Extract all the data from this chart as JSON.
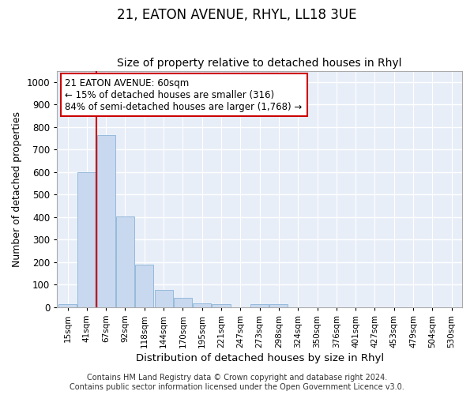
{
  "title": "21, EATON AVENUE, RHYL, LL18 3UE",
  "subtitle": "Size of property relative to detached houses in Rhyl",
  "xlabel": "Distribution of detached houses by size in Rhyl",
  "ylabel": "Number of detached properties",
  "bar_color": "#c8d8ee",
  "bar_edge_color": "#8ab4d8",
  "background_color": "#e8eef8",
  "grid_color": "#ffffff",
  "fig_background": "#ffffff",
  "categories": [
    "15sqm",
    "41sqm",
    "67sqm",
    "92sqm",
    "118sqm",
    "144sqm",
    "170sqm",
    "195sqm",
    "221sqm",
    "247sqm",
    "273sqm",
    "298sqm",
    "324sqm",
    "350sqm",
    "376sqm",
    "401sqm",
    "427sqm",
    "453sqm",
    "479sqm",
    "504sqm",
    "530sqm"
  ],
  "values": [
    15,
    600,
    765,
    403,
    190,
    77,
    40,
    18,
    15,
    0,
    12,
    12,
    0,
    0,
    0,
    0,
    0,
    0,
    0,
    0,
    0
  ],
  "ylim": [
    0,
    1050
  ],
  "yticks": [
    0,
    100,
    200,
    300,
    400,
    500,
    600,
    700,
    800,
    900,
    1000
  ],
  "vline_x": 2.0,
  "vline_color": "#cc0000",
  "annotation_text": "21 EATON AVENUE: 60sqm\n← 15% of detached houses are smaller (316)\n84% of semi-detached houses are larger (1,768) →",
  "annotation_box_color": "#ffffff",
  "annotation_box_edge": "#cc0000",
  "footer": "Contains HM Land Registry data © Crown copyright and database right 2024.\nContains public sector information licensed under the Open Government Licence v3.0.",
  "title_fontsize": 12,
  "subtitle_fontsize": 10,
  "xlabel_fontsize": 9.5,
  "ylabel_fontsize": 9,
  "annotation_fontsize": 8.5,
  "footer_fontsize": 7
}
